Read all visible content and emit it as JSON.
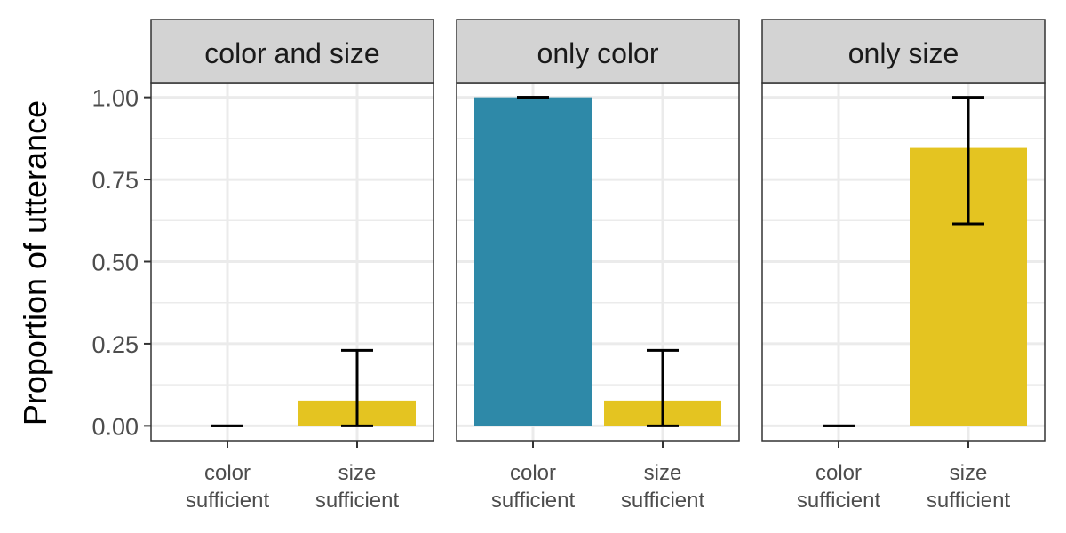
{
  "chart_data": {
    "type": "bar",
    "ylabel": "Proportion of utterance",
    "ylim": [
      -0.045,
      1.045
    ],
    "yticks": [
      0.0,
      0.25,
      0.5,
      0.75,
      1.0
    ],
    "ytick_labels": [
      "0.00",
      "0.25",
      "0.50",
      "0.75",
      "1.00"
    ],
    "categories": [
      [
        "color",
        "sufficient"
      ],
      [
        "size",
        "sufficient"
      ]
    ],
    "grid": true,
    "legend": "none",
    "colors": {
      "color sufficient": "#2E89A8",
      "size sufficient": "#E4C421",
      "strip_background": "#D3D3D3",
      "grid": "#EBEBEB",
      "error_bar": "#000000"
    },
    "panels": [
      {
        "title": "color and size",
        "bars": [
          {
            "category": "color sufficient",
            "value": 0.0,
            "ci_low": 0.0,
            "ci_high": 0.0
          },
          {
            "category": "size sufficient",
            "value": 0.077,
            "ci_low": 0.0,
            "ci_high": 0.23
          }
        ]
      },
      {
        "title": "only color",
        "bars": [
          {
            "category": "color sufficient",
            "value": 1.0,
            "ci_low": 1.0,
            "ci_high": 1.0
          },
          {
            "category": "size sufficient",
            "value": 0.077,
            "ci_low": 0.0,
            "ci_high": 0.23
          }
        ]
      },
      {
        "title": "only size",
        "bars": [
          {
            "category": "color sufficient",
            "value": 0.0,
            "ci_low": 0.0,
            "ci_high": 0.0
          },
          {
            "category": "size sufficient",
            "value": 0.846,
            "ci_low": 0.615,
            "ci_high": 1.0
          }
        ]
      }
    ]
  }
}
